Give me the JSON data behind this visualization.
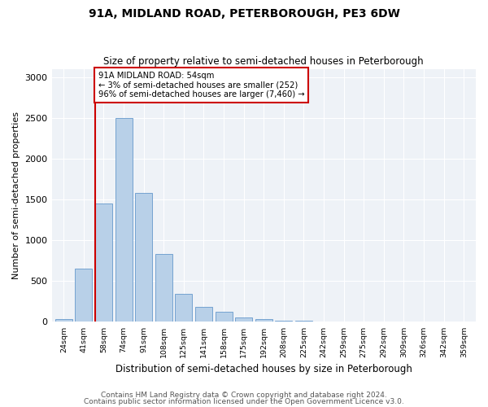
{
  "title1": "91A, MIDLAND ROAD, PETERBOROUGH, PE3 6DW",
  "title2": "Size of property relative to semi-detached houses in Peterborough",
  "xlabel": "Distribution of semi-detached houses by size in Peterborough",
  "ylabel": "Number of semi-detached properties",
  "categories": [
    "24sqm",
    "41sqm",
    "58sqm",
    "74sqm",
    "91sqm",
    "108sqm",
    "125sqm",
    "141sqm",
    "158sqm",
    "175sqm",
    "192sqm",
    "208sqm",
    "225sqm",
    "242sqm",
    "259sqm",
    "275sqm",
    "292sqm",
    "309sqm",
    "326sqm",
    "342sqm",
    "359sqm"
  ],
  "values": [
    30,
    650,
    1450,
    2500,
    1580,
    830,
    340,
    185,
    120,
    55,
    30,
    15,
    10,
    6,
    4,
    4,
    3,
    2,
    2,
    2,
    2
  ],
  "bar_color": "#b8d0e8",
  "bar_edge_color": "#6699cc",
  "red_line_xindex": 2,
  "annotation_line1": "91A MIDLAND ROAD: 54sqm",
  "annotation_line2": "← 3% of semi-detached houses are smaller (252)",
  "annotation_line3": "96% of semi-detached houses are larger (7,460) →",
  "red_line_color": "#cc0000",
  "annotation_box_edgecolor": "#cc0000",
  "ylim": [
    0,
    3100
  ],
  "yticks": [
    0,
    500,
    1000,
    1500,
    2000,
    2500,
    3000
  ],
  "footer1": "Contains HM Land Registry data © Crown copyright and database right 2024.",
  "footer2": "Contains public sector information licensed under the Open Government Licence v3.0.",
  "background_color": "#eef2f7"
}
